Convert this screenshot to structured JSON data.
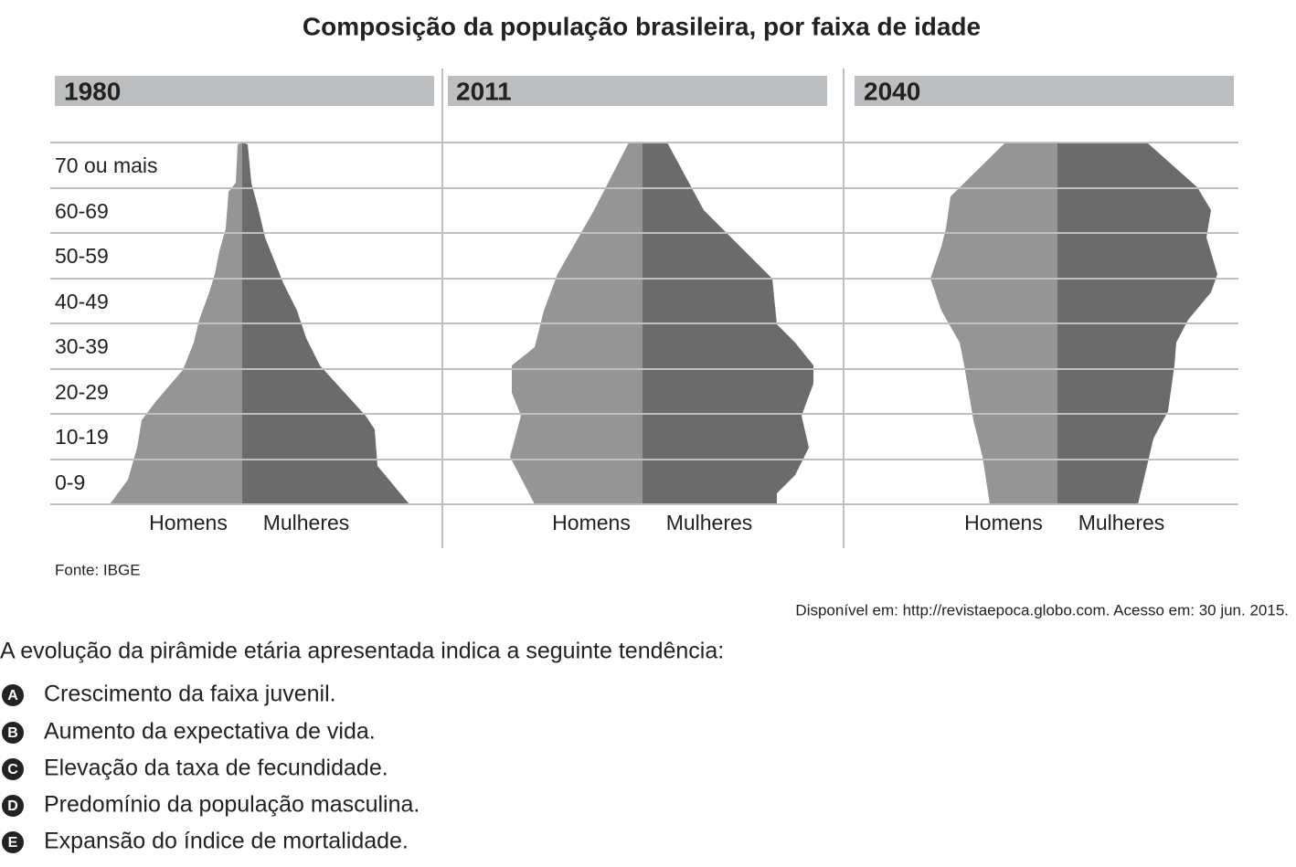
{
  "header": {
    "title": "Composição da população brasileira, por faixa de idade"
  },
  "panels": [
    {
      "year": "1980",
      "men": "Homens",
      "women": "Mulheres"
    },
    {
      "year": "2011",
      "men": "Homens",
      "women": "Mulheres"
    },
    {
      "year": "2040",
      "men": "Homens",
      "women": "Mulheres"
    }
  ],
  "age_groups": [
    "70 ou mais",
    "60-69",
    "50-59",
    "40-49",
    "30-39",
    "20-29",
    "10-19",
    "0-9"
  ],
  "source": "Fonte: IBGE",
  "citation": "Disponível em: http://revistaepoca.globo.com. Acesso em: 30 jun. 2015.",
  "question": "A evolução da pirâmide etária apresentada indica a seguinte tendência:",
  "options": [
    {
      "letter": "A",
      "text": "Crescimento da faixa juvenil."
    },
    {
      "letter": "B",
      "text": "Aumento da expectativa de vida."
    },
    {
      "letter": "C",
      "text": "Elevação da taxa de fecundidade."
    },
    {
      "letter": "D",
      "text": "Predomínio da população masculina."
    },
    {
      "letter": "E",
      "text": "Expansão do índice de mortalidade."
    }
  ]
}
